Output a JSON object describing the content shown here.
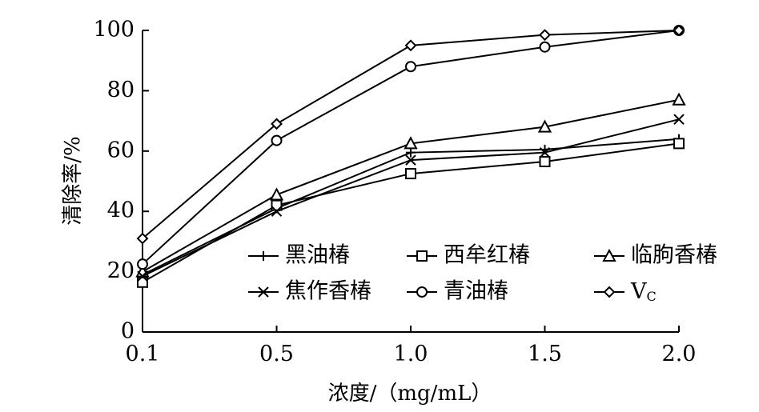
{
  "chart_data": {
    "type": "line",
    "x": [
      "0.1",
      "0.5",
      "1.0",
      "1.5",
      "2.0"
    ],
    "xlabel": "浓度/（mg/mL）",
    "ylabel": "清除率/%",
    "ylim": [
      0,
      100
    ],
    "yticks": [
      "0",
      "20",
      "40",
      "60",
      "80",
      "100"
    ],
    "grid": false,
    "legend_position": "inside, lower-right",
    "series": [
      {
        "name": "黑油椿",
        "marker": "plus",
        "values": [
          19,
          41,
          59.5,
          60.5,
          64
        ]
      },
      {
        "name": "西牟红椿",
        "marker": "square",
        "values": [
          16.5,
          42,
          52.5,
          56.5,
          62.5
        ]
      },
      {
        "name": "临朐香椿",
        "marker": "triangle",
        "values": [
          20,
          45.5,
          62.5,
          68,
          77
        ]
      },
      {
        "name": "焦作香椿",
        "marker": "x",
        "values": [
          18.5,
          40,
          57,
          59.5,
          70.5
        ]
      },
      {
        "name": "青油椿",
        "marker": "circle",
        "values": [
          22.5,
          63.5,
          88,
          94.5,
          100
        ]
      },
      {
        "name": "VC",
        "marker": "diamond",
        "values": [
          31,
          69,
          95,
          98.5,
          100
        ]
      }
    ]
  }
}
